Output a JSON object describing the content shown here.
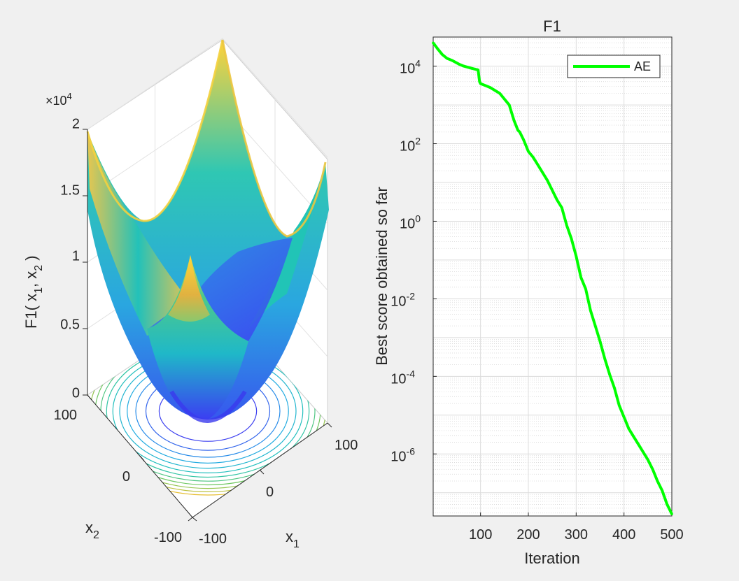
{
  "colors": {
    "background": "#f0f0f0",
    "axes_bg": "#ffffff",
    "curve": "#00ff00",
    "text": "#262626",
    "grid": "#dcdcdc",
    "surface_low": "#3d3df0",
    "surface_mid": "#20c0c0",
    "surface_high": "#ffd23a"
  },
  "chart_data": [
    {
      "type": "surface",
      "function": "F1(x1,x2) = x1^2 + x2^2",
      "zlabel": "F1( x",
      "zlabel_sub1": "1",
      "zlabel_sep": ", x",
      "zlabel_sub2": "2",
      "zlabel_end": " )",
      "xlabel": "x",
      "xlabel_sub": "1",
      "ylabel": "x",
      "ylabel_sub": "2",
      "xlim": [
        -100,
        100
      ],
      "ylim": [
        -100,
        100
      ],
      "zlim": [
        0,
        20000
      ],
      "x_ticks": [
        "-100",
        "0",
        "100"
      ],
      "y_ticks": [
        "-100",
        "0",
        "100"
      ],
      "z_ticks": [
        "0",
        "0.5",
        "1",
        "1.5",
        "2"
      ],
      "z_exponent_prefix": "×10",
      "z_exponent_power": "4",
      "contour_levels": [
        1000,
        2000,
        3000,
        4000,
        5000,
        6000,
        7000,
        8000,
        9000,
        10000,
        11000,
        12000
      ]
    },
    {
      "type": "line",
      "title": "F1",
      "xlabel": "Iteration",
      "ylabel": "Best score obtained so far",
      "yscale": "log",
      "xlim": [
        1,
        500
      ],
      "ylim_log10": [
        -7.6,
        4.75
      ],
      "x_ticks": [
        "100",
        "200",
        "300",
        "400",
        "500"
      ],
      "y_tick_base": "10",
      "y_tick_exps": [
        "4",
        "2",
        "0",
        "-2",
        "-4",
        "-6"
      ],
      "legend": [
        "AE"
      ],
      "legend_location": "top-right",
      "grid": true,
      "series": [
        {
          "name": "AE",
          "x": [
            1,
            10,
            20,
            30,
            40,
            55,
            65,
            80,
            95,
            98,
            100,
            110,
            120,
            140,
            160,
            170,
            178,
            182,
            190,
            200,
            210,
            220,
            240,
            260,
            270,
            280,
            290,
            300,
            310,
            320,
            330,
            340,
            350,
            360,
            370,
            380,
            390,
            400,
            410,
            420,
            430,
            440,
            450,
            460,
            470,
            480,
            490,
            500
          ],
          "log10_y": [
            4.6,
            4.45,
            4.3,
            4.2,
            4.15,
            4.05,
            4.0,
            3.95,
            3.9,
            3.6,
            3.55,
            3.5,
            3.45,
            3.3,
            3.0,
            2.6,
            2.35,
            2.3,
            2.1,
            1.8,
            1.65,
            1.45,
            1.05,
            0.55,
            0.35,
            -0.1,
            -0.45,
            -0.9,
            -1.45,
            -1.75,
            -2.3,
            -2.7,
            -3.1,
            -3.55,
            -3.95,
            -4.3,
            -4.75,
            -5.05,
            -5.35,
            -5.55,
            -5.75,
            -5.95,
            -6.15,
            -6.4,
            -6.7,
            -6.95,
            -7.3,
            -7.55
          ]
        }
      ]
    }
  ],
  "watermark": "  "
}
